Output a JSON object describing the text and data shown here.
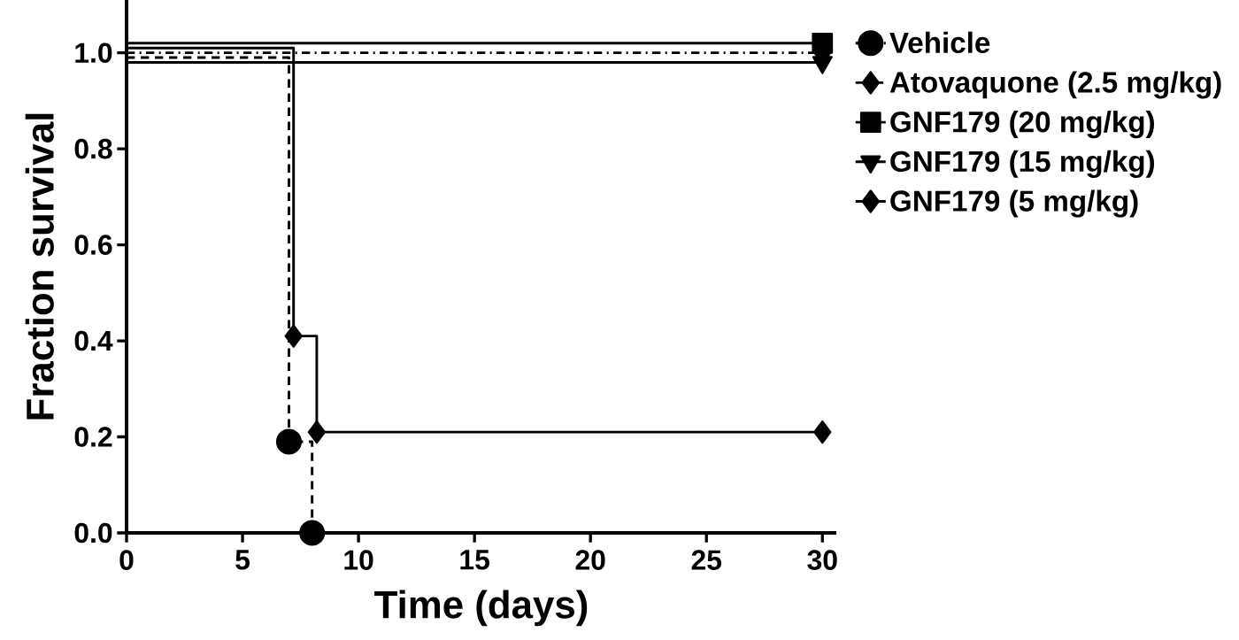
{
  "chart_data": {
    "type": "step",
    "xlabel": "Time (days)",
    "ylabel": "Fraction survival",
    "xlim": [
      0,
      30.6
    ],
    "ylim": [
      0,
      1.11
    ],
    "xticks": [
      0,
      5,
      10,
      15,
      20,
      25,
      30
    ],
    "yticks": [
      {
        "value": 0,
        "label": "0.0"
      },
      {
        "value": 0.2,
        "label": "0.2"
      },
      {
        "value": 0.4,
        "label": "0.4"
      },
      {
        "value": 0.6,
        "label": "0.6"
      },
      {
        "value": 0.8,
        "label": "0.8"
      },
      {
        "value": 1.0,
        "label": "1.0"
      }
    ],
    "legend": "right",
    "series": [
      {
        "name": "Vehicle",
        "color": "#000000",
        "marker": "circle",
        "line_style": "dashed",
        "x": [
          0,
          7,
          8
        ],
        "values": [
          0.99,
          0.19,
          0
        ]
      },
      {
        "name": "Atovaquone (2.5 mg/kg)",
        "color": "#000000",
        "marker": "diamond",
        "line_style": "dashdotted",
        "x": [
          0,
          30
        ],
        "values": [
          1.0,
          1.0
        ]
      },
      {
        "name": "GNF179 (20 mg/kg)",
        "color": "#000000",
        "marker": "square",
        "line_style": "solid",
        "x": [
          0,
          30
        ],
        "values": [
          1.02,
          1.02
        ]
      },
      {
        "name": "GNF179 (15 mg/kg)",
        "color": "#000000",
        "marker": "triangle",
        "line_style": "solid",
        "x": [
          0,
          30
        ],
        "values": [
          0.98,
          0.98
        ]
      },
      {
        "name": "GNF179 (5 mg/kg)",
        "color": "#000000",
        "marker": "diamond",
        "line_style": "solid",
        "x": [
          0,
          7.2,
          8.2,
          30
        ],
        "values": [
          1.01,
          0.41,
          0.21,
          0.21
        ]
      }
    ]
  }
}
